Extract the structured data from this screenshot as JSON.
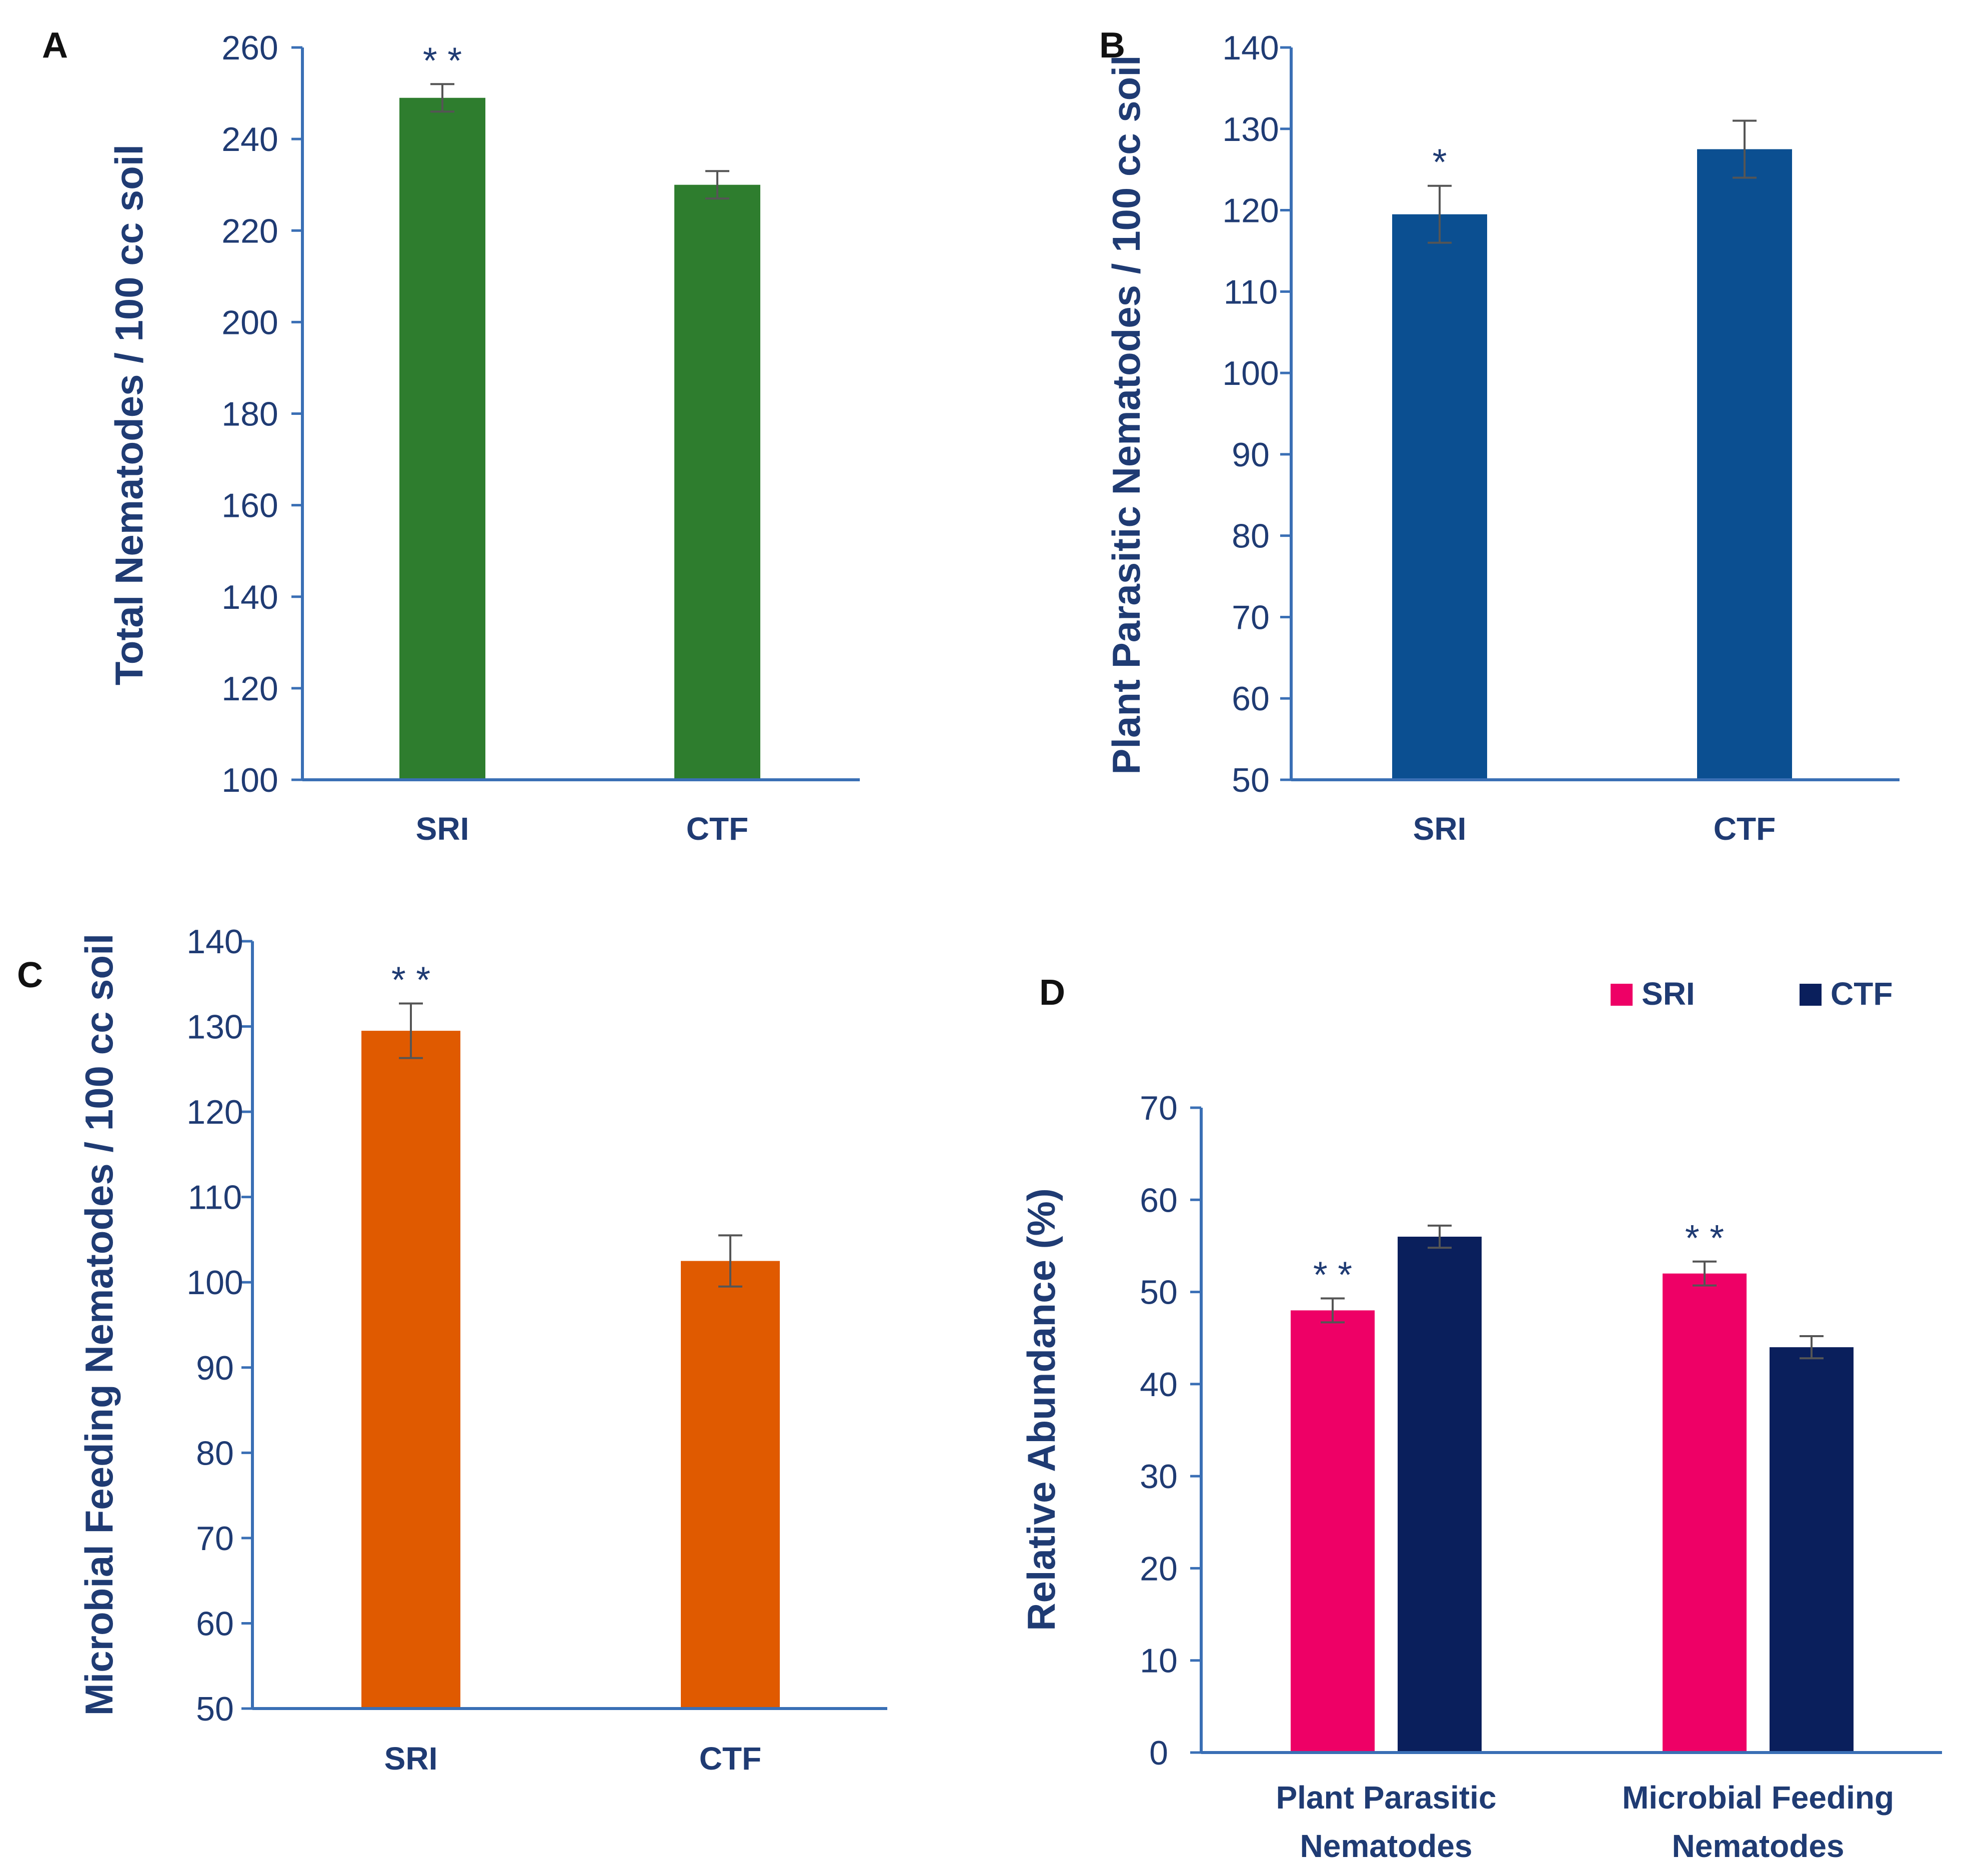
{
  "chart_data": [
    {
      "panel": "A",
      "type": "bar",
      "categories": [
        "SRI",
        "CTF"
      ],
      "values": [
        249,
        230
      ],
      "errors": [
        3,
        3
      ],
      "significance": [
        "* *",
        ""
      ],
      "ylabel": "Total Nematodes / 100 cc soil",
      "ylim": [
        100,
        260
      ],
      "yticks": [
        100,
        120,
        140,
        160,
        180,
        200,
        220,
        240,
        260
      ],
      "colors": [
        "#2e7d2e"
      ]
    },
    {
      "panel": "B",
      "type": "bar",
      "categories": [
        "SRI",
        "CTF"
      ],
      "values": [
        119.5,
        127.5
      ],
      "errors": [
        3.5,
        3.5
      ],
      "significance": [
        "*",
        ""
      ],
      "ylabel": "Plant Parasitic Nematodes / 100 cc soil",
      "ylim": [
        50,
        140
      ],
      "yticks": [
        50,
        60,
        70,
        80,
        90,
        100,
        110,
        120,
        130,
        140
      ],
      "colors": [
        "#0b4f91"
      ]
    },
    {
      "panel": "C",
      "type": "bar",
      "categories": [
        "SRI",
        "CTF"
      ],
      "values": [
        129.5,
        102.5
      ],
      "errors": [
        3.2,
        3
      ],
      "significance": [
        "* *",
        ""
      ],
      "ylabel": "Microbial Feeding Nematodes / 100 cc soil",
      "ylim": [
        50,
        140
      ],
      "yticks": [
        50,
        60,
        70,
        80,
        90,
        100,
        110,
        120,
        130,
        140
      ],
      "colors": [
        "#e05a00"
      ]
    },
    {
      "panel": "D",
      "type": "bar",
      "categories": [
        [
          "Plant Parasitic",
          "Nematodes"
        ],
        [
          "Microbial Feeding",
          "Nematodes"
        ]
      ],
      "series": [
        {
          "name": "SRI",
          "values": [
            48,
            52
          ],
          "errors": [
            1.3,
            1.3
          ],
          "significance": [
            "* *",
            "* *"
          ],
          "color": "#ee0066"
        },
        {
          "name": "CTF",
          "values": [
            56,
            44
          ],
          "errors": [
            1.2,
            1.2
          ],
          "significance": [
            "",
            ""
          ],
          "color": "#0a1f5c"
        }
      ],
      "ylabel": "Relative Abundance (%)",
      "ylim": [
        0,
        70
      ],
      "yticks": [
        0,
        10,
        20,
        30,
        40,
        50,
        60,
        70
      ],
      "legend": "top-right"
    }
  ],
  "style": {
    "axis_color": "#3a6fb5",
    "error_color": "#555555"
  }
}
